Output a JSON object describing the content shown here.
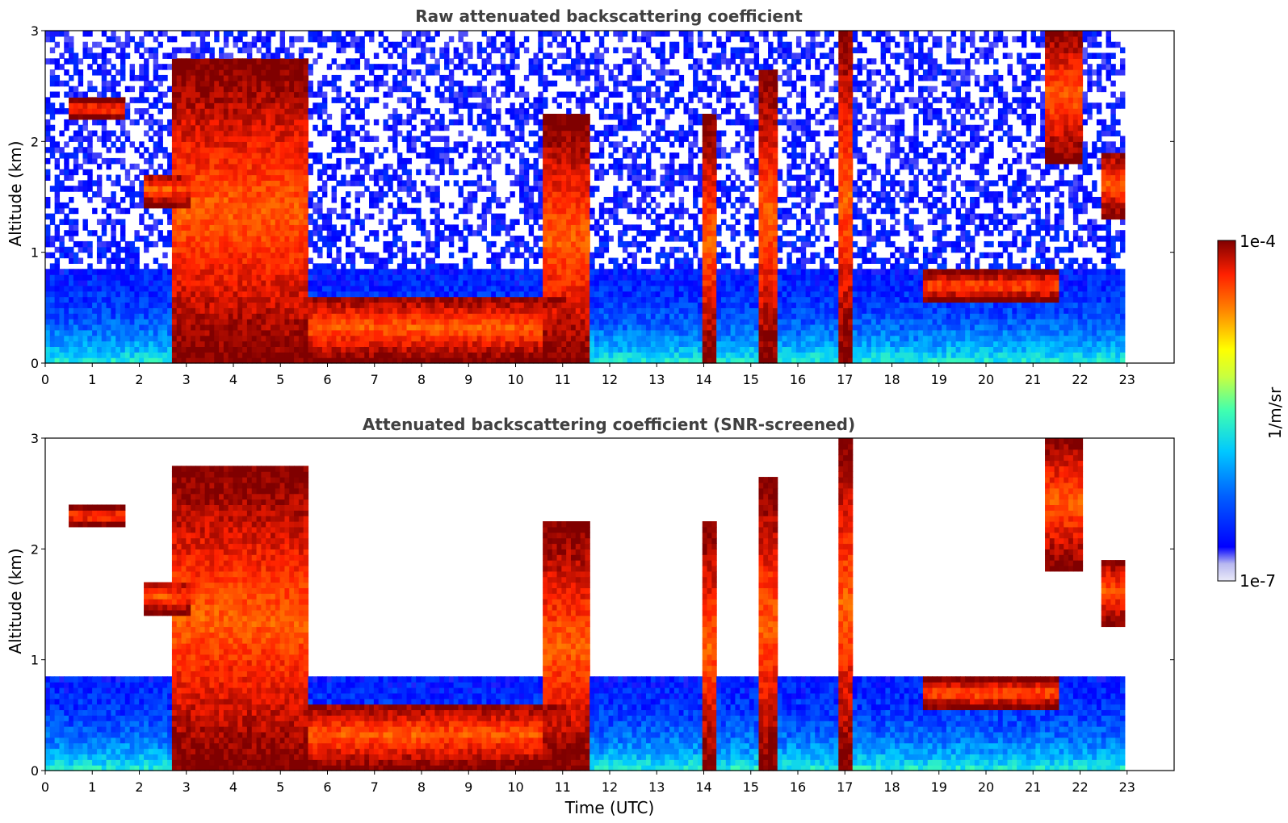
{
  "chart_data": [
    {
      "type": "heatmap",
      "title": "Raw attenuated backscattering coefficient",
      "xlabel": "",
      "ylabel": "Altitude (km)",
      "xlim": [
        0,
        24
      ],
      "ylim": [
        0,
        3
      ],
      "x_ticks": [
        "0",
        "1",
        "2",
        "3",
        "4",
        "5",
        "6",
        "7",
        "8",
        "9",
        "10",
        "11",
        "12",
        "13",
        "14",
        "15",
        "16",
        "17",
        "18",
        "19",
        "20",
        "21",
        "22",
        "23"
      ],
      "y_ticks": [
        "0",
        "1",
        "2",
        "3"
      ],
      "data_time_range": [
        0,
        22.95
      ],
      "layers": [
        {
          "feature": "cloud layer",
          "x": [
            0.4,
            1.6
          ],
          "y": [
            2.2,
            2.35
          ]
        },
        {
          "feature": "cloud layer",
          "x": [
            2.0,
            3.0
          ],
          "y": [
            1.4,
            1.7
          ]
        },
        {
          "feature": "thick cloud",
          "x": [
            2.6,
            5.5
          ],
          "y": [
            0.0,
            2.7
          ]
        },
        {
          "feature": "cloud layer",
          "x": [
            5.5,
            11.0
          ],
          "y": [
            0.0,
            0.6
          ]
        },
        {
          "feature": "cloud layer",
          "x": [
            10.5,
            11.5
          ],
          "y": [
            0.0,
            2.2
          ]
        },
        {
          "feature": "cloud column",
          "x": [
            13.9,
            14.2
          ],
          "y": [
            0.0,
            2.2
          ]
        },
        {
          "feature": "cloud column",
          "x": [
            15.1,
            15.5
          ],
          "y": [
            0.0,
            2.6
          ]
        },
        {
          "feature": "cloud column",
          "x": [
            16.8,
            17.1
          ],
          "y": [
            0.0,
            3.0
          ]
        },
        {
          "feature": "cloud layer",
          "x": [
            18.6,
            21.5
          ],
          "y": [
            0.55,
            0.8
          ]
        },
        {
          "feature": "plume",
          "x": [
            21.2,
            22.0
          ],
          "y": [
            1.8,
            3.0
          ]
        },
        {
          "feature": "cloud layer",
          "x": [
            22.4,
            22.95
          ],
          "y": [
            1.3,
            1.9
          ]
        }
      ]
    },
    {
      "type": "heatmap",
      "title": "Attenuated backscattering coefficient (SNR-screened)",
      "xlabel": "Time (UTC)",
      "ylabel": "Altitude (km)",
      "xlim": [
        0,
        24
      ],
      "ylim": [
        0,
        3
      ],
      "x_ticks": [
        "0",
        "1",
        "2",
        "3",
        "4",
        "5",
        "6",
        "7",
        "8",
        "9",
        "10",
        "11",
        "12",
        "13",
        "14",
        "15",
        "16",
        "17",
        "18",
        "19",
        "20",
        "21",
        "22",
        "23"
      ],
      "y_ticks": [
        "0",
        "1",
        "2",
        "3"
      ],
      "data_time_range": [
        0,
        22.95
      ]
    }
  ],
  "colorbar": {
    "label": "1/m/sr",
    "max_label": "1e-4",
    "min_label": "1e-7",
    "scale": "log",
    "colors": [
      "#e8e8f8",
      "#b8b8f0",
      "#0000ff",
      "#0060ff",
      "#00c8ff",
      "#40ffb0",
      "#c8ff40",
      "#ffff00",
      "#ff8000",
      "#ff2000",
      "#800000"
    ]
  }
}
